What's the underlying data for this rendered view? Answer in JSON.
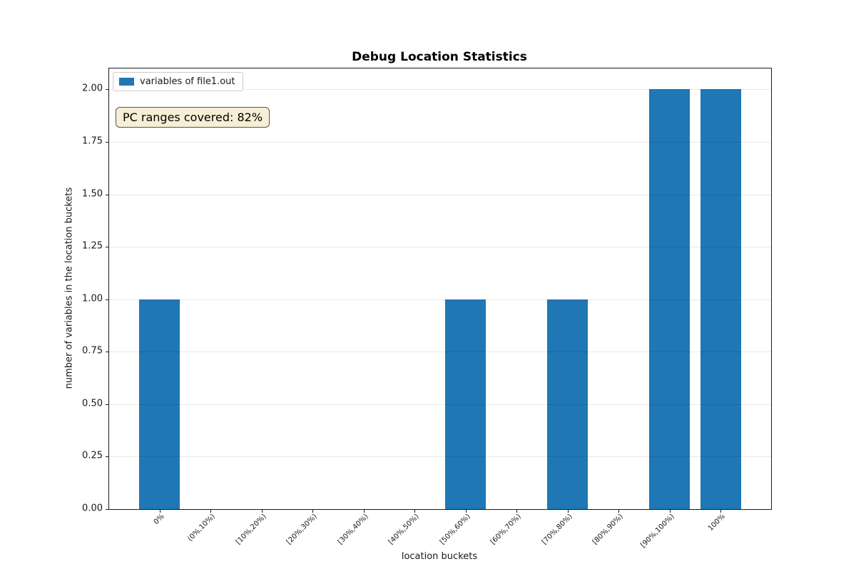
{
  "chart_data": {
    "type": "bar",
    "title": "Debug Location Statistics",
    "xlabel": "location buckets",
    "ylabel": "number of variables in the location buckets",
    "categories": [
      "0%",
      "(0%,10%)",
      "[10%,20%)",
      "[20%,30%)",
      "[30%,40%)",
      "[40%,50%)",
      "[50%,60%)",
      "[60%,70%)",
      "[70%,80%)",
      "[80%,90%)",
      "[90%,100%)",
      "100%"
    ],
    "values": [
      1,
      0,
      0,
      0,
      0,
      0,
      1,
      0,
      1,
      0,
      2,
      2
    ],
    "ylim": [
      0,
      2.1
    ],
    "yticks": [
      0,
      0.25,
      0.5,
      0.75,
      1.0,
      1.25,
      1.5,
      1.75,
      2.0
    ],
    "ytick_labels": [
      "0.00",
      "0.25",
      "0.50",
      "0.75",
      "1.00",
      "1.25",
      "1.50",
      "1.75",
      "2.00"
    ],
    "x_tick_rotation_deg": 45,
    "grid": "horizontal",
    "bar_color": "#1f77b4",
    "bar_width_fraction": 0.8,
    "legend": {
      "position": "upper-left",
      "entries": [
        {
          "label": "variables of file1.out",
          "color": "#1f77b4"
        }
      ]
    },
    "annotation": {
      "text": "PC ranges covered: 82%",
      "bg_color": "#f7eed6",
      "border_color": "#55544a"
    }
  },
  "colors": {
    "grid": "#e6e6e6",
    "spine": "#1a1a1a",
    "background": "#ffffff"
  }
}
